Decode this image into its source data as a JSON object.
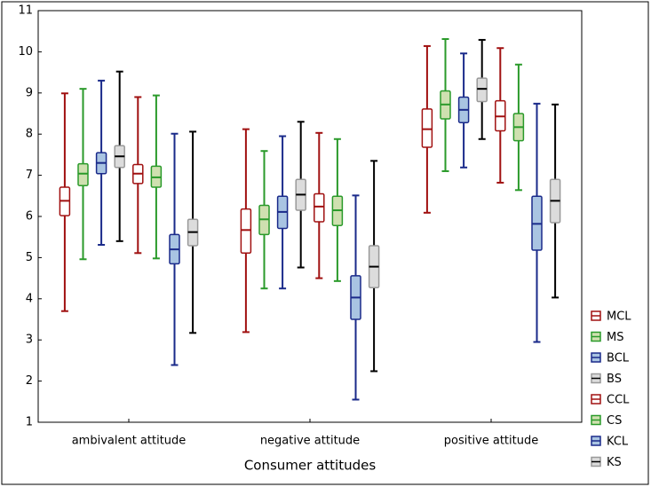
{
  "chart_data": {
    "type": "boxplot",
    "x_label": "Consumer attitudes",
    "categories": [
      "ambivalent attitude",
      "negative attitude",
      "positive attitude"
    ],
    "ylim": [
      1,
      11
    ],
    "yticks": [
      1,
      2,
      3,
      4,
      5,
      6,
      7,
      8,
      9,
      10,
      11
    ],
    "grid": false,
    "legend": "right",
    "series": [
      {
        "name": "MCL",
        "color": "#a01010",
        "fill": "#ffffff",
        "min": [
          3.7,
          3.19,
          6.09
        ],
        "q1": [
          6.02,
          5.11,
          7.68
        ],
        "median": [
          6.38,
          5.67,
          8.12
        ],
        "q3": [
          6.71,
          6.18,
          8.61
        ],
        "max": [
          8.99,
          8.12,
          10.14
        ]
      },
      {
        "name": "MS",
        "color": "#2a9a2a",
        "fill": "#cfe0b0",
        "min": [
          4.96,
          4.25,
          7.1
        ],
        "q1": [
          6.75,
          5.56,
          8.37
        ],
        "median": [
          7.04,
          5.93,
          8.72
        ],
        "q3": [
          7.28,
          6.27,
          9.05
        ],
        "max": [
          9.1,
          7.59,
          10.31
        ]
      },
      {
        "name": "BCL",
        "color": "#1a2a8a",
        "fill": "#a9c4e2",
        "min": [
          5.31,
          4.25,
          7.19
        ],
        "q1": [
          7.04,
          5.71,
          8.28
        ],
        "median": [
          7.3,
          6.11,
          8.59
        ],
        "q3": [
          7.55,
          6.49,
          8.9
        ],
        "max": [
          9.3,
          7.95,
          9.96
        ]
      },
      {
        "name": "BS",
        "color": "#000000",
        "fill": "#dcdcdc",
        "min": [
          5.4,
          4.76,
          7.88
        ],
        "q1": [
          7.19,
          6.15,
          8.79
        ],
        "median": [
          7.46,
          6.53,
          9.1
        ],
        "q3": [
          7.72,
          6.9,
          9.36
        ],
        "max": [
          9.52,
          8.3,
          10.29
        ]
      },
      {
        "name": "CCL",
        "color": "#a01010",
        "fill": "#ffffff",
        "min": [
          5.11,
          4.5,
          6.82
        ],
        "q1": [
          6.8,
          5.87,
          8.08
        ],
        "median": [
          7.04,
          6.24,
          8.43
        ],
        "q3": [
          7.26,
          6.55,
          8.81
        ],
        "max": [
          8.9,
          8.03,
          10.09
        ]
      },
      {
        "name": "CS",
        "color": "#2a9a2a",
        "fill": "#cfe0b0",
        "min": [
          4.98,
          4.43,
          6.64
        ],
        "q1": [
          6.71,
          5.78,
          7.84
        ],
        "median": [
          6.95,
          6.15,
          8.17
        ],
        "q3": [
          7.22,
          6.49,
          8.5
        ],
        "max": [
          8.94,
          7.88,
          9.69
        ]
      },
      {
        "name": "KCL",
        "color": "#1a2a8a",
        "fill": "#a9c4e2",
        "min": [
          2.39,
          1.55,
          2.95
        ],
        "q1": [
          4.85,
          3.5,
          5.18
        ],
        "median": [
          5.2,
          4.03,
          5.82
        ],
        "q3": [
          5.56,
          4.56,
          6.49
        ],
        "max": [
          8.01,
          6.51,
          8.74
        ]
      },
      {
        "name": "KS",
        "color": "#000000",
        "fill": "#dcdcdc",
        "min": [
          3.17,
          2.24,
          4.03
        ],
        "q1": [
          5.29,
          4.27,
          5.85
        ],
        "median": [
          5.62,
          4.78,
          6.38
        ],
        "q3": [
          5.93,
          5.29,
          6.9
        ],
        "max": [
          8.06,
          7.35,
          8.72
        ]
      }
    ]
  }
}
